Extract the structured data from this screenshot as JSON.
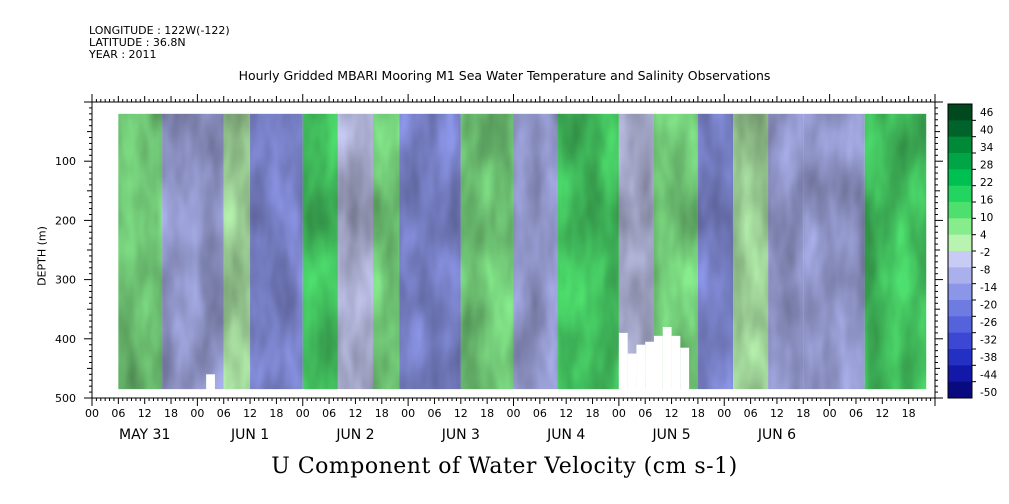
{
  "header": {
    "longitude": "LONGITUDE : 122W(-122)",
    "latitude": "LATITUDE : 36.8N",
    "year": "YEAR : 2011"
  },
  "chart_data": {
    "type": "heatmap",
    "title": "Hourly Gridded MBARI Mooring M1 Sea Water Temperature and Salinity Observations",
    "xlabel": "U Component of Water Velocity (cm s-1)",
    "ylabel": "DEPTH (m)",
    "x_hour_ticks": [
      "00",
      "06",
      "12",
      "18",
      "00",
      "06",
      "12",
      "18",
      "00",
      "06",
      "12",
      "18",
      "00",
      "06",
      "12",
      "18",
      "00",
      "06",
      "12",
      "18",
      "00",
      "06",
      "12",
      "18",
      "00",
      "06",
      "12",
      "18",
      "00",
      "06",
      "12",
      "18"
    ],
    "x_day_labels": [
      "MAY 31",
      "JUN  1",
      "JUN  2",
      "JUN  3",
      "JUN  4",
      "JUN  5",
      "JUN  6"
    ],
    "y_ticks": [
      100,
      200,
      300,
      400,
      500
    ],
    "ylim": [
      500,
      0
    ],
    "x_range_hours": [
      0,
      192
    ],
    "data_extent_hours": [
      6,
      190
    ],
    "data_extent_depth_m": [
      20,
      485
    ],
    "colorbar_levels": [
      46,
      40,
      34,
      28,
      22,
      16,
      10,
      4,
      -2,
      -8,
      -14,
      -20,
      -26,
      -32,
      -38,
      -44,
      -50
    ],
    "colorbar_colors": [
      "#00481e",
      "#00642a",
      "#008a38",
      "#00a646",
      "#00c052",
      "#22d460",
      "#4ee06e",
      "#86ec8c",
      "#b8f4b0",
      "#c8ccf4",
      "#aab0ec",
      "#8c96e8",
      "#6e7ce2",
      "#5462dc",
      "#3c48d4",
      "#2430c4",
      "#1418a8",
      "#0a0a80"
    ],
    "velocity_bands": [
      {
        "start_hour": 6,
        "end_hour": 16,
        "u": 10
      },
      {
        "start_hour": 16,
        "end_hour": 30,
        "u": -8
      },
      {
        "start_hour": 30,
        "end_hour": 36,
        "u": 4
      },
      {
        "start_hour": 36,
        "end_hour": 48,
        "u": -14
      },
      {
        "start_hour": 48,
        "end_hour": 56,
        "u": 12
      },
      {
        "start_hour": 56,
        "end_hour": 64,
        "u": -6
      },
      {
        "start_hour": 64,
        "end_hour": 70,
        "u": 6
      },
      {
        "start_hour": 70,
        "end_hour": 84,
        "u": -16
      },
      {
        "start_hour": 84,
        "end_hour": 96,
        "u": 8
      },
      {
        "start_hour": 96,
        "end_hour": 106,
        "u": -10
      },
      {
        "start_hour": 106,
        "end_hour": 120,
        "u": 12
      },
      {
        "start_hour": 120,
        "end_hour": 128,
        "u": -4
      },
      {
        "start_hour": 128,
        "end_hour": 138,
        "u": 8
      },
      {
        "start_hour": 138,
        "end_hour": 146,
        "u": -14
      },
      {
        "start_hour": 146,
        "end_hour": 154,
        "u": 4
      },
      {
        "start_hour": 154,
        "end_hour": 162,
        "u": -8
      },
      {
        "start_hour": 162,
        "end_hour": 176,
        "u": -12
      },
      {
        "start_hour": 176,
        "end_hour": 190,
        "u": 16
      }
    ],
    "missing_data_regions": [
      {
        "start_hour": 26,
        "end_hour": 28,
        "top_depth_m": 460
      },
      {
        "start_hour": 120,
        "end_hour": 122,
        "top_depth_m": 390
      },
      {
        "start_hour": 122,
        "end_hour": 124,
        "top_depth_m": 425
      },
      {
        "start_hour": 124,
        "end_hour": 126,
        "top_depth_m": 410
      },
      {
        "start_hour": 126,
        "end_hour": 128,
        "top_depth_m": 405
      },
      {
        "start_hour": 128,
        "end_hour": 130,
        "top_depth_m": 395
      },
      {
        "start_hour": 130,
        "end_hour": 132,
        "top_depth_m": 380
      },
      {
        "start_hour": 132,
        "end_hour": 134,
        "top_depth_m": 395
      },
      {
        "start_hour": 134,
        "end_hour": 136,
        "top_depth_m": 415
      }
    ]
  }
}
